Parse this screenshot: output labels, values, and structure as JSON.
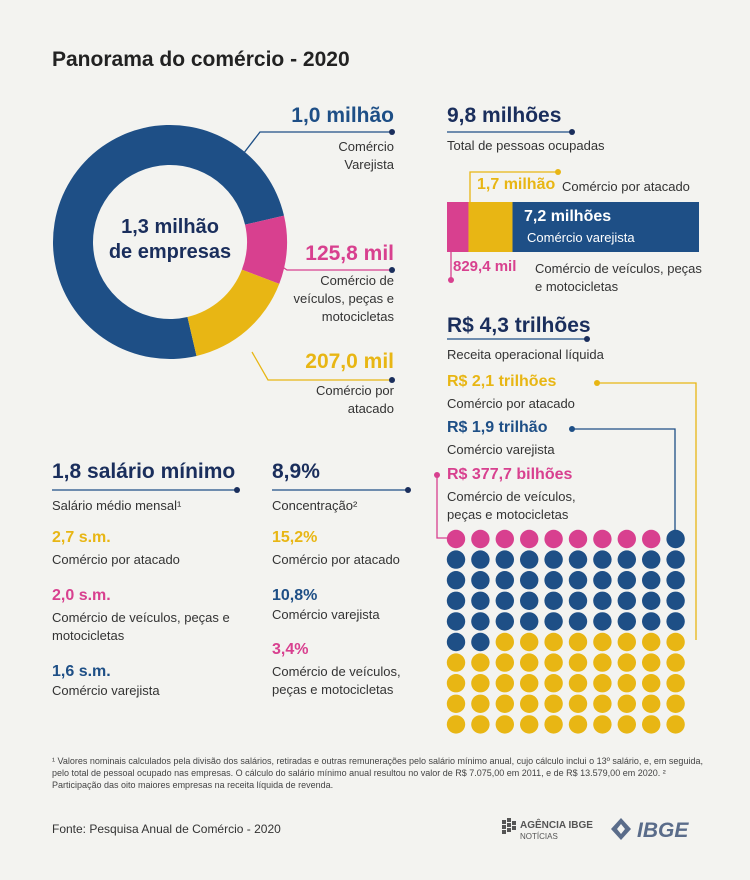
{
  "title": "Panorama do comércio - 2020",
  "colors": {
    "navy": "#1a2e5c",
    "blue": "#1e4f86",
    "gold": "#e8b614",
    "pink": "#d8408f"
  },
  "chart_data": [
    {
      "type": "pie",
      "center_label": [
        "1,3 milhão",
        "de empresas"
      ],
      "slices": [
        {
          "value": 1.0,
          "value_label": "1,0 milhão",
          "label": "Comércio Varejista",
          "color": "#1e4f86"
        },
        {
          "value": 0.1258,
          "value_label": "125,8 mil",
          "label": "Comércio de veículos, peças e motocicletas",
          "color": "#d8408f"
        },
        {
          "value": 0.207,
          "value_label": "207,0 mil",
          "label": "Comércio por atacado",
          "color": "#e8b614"
        }
      ]
    },
    {
      "type": "bar",
      "headline": "9,8 milhões",
      "subtitle": "Total de pessoas ocupadas",
      "segments": [
        {
          "value": 0.8294,
          "value_label": "829,4 mil",
          "label": "Comércio de veículos, peças e motocicletas",
          "color": "#d8408f"
        },
        {
          "value": 1.7,
          "value_label": "1,7 milhão",
          "label": "Comércio por atacado",
          "color": "#e8b614"
        },
        {
          "value": 7.2,
          "value_label": "7,2 milhões",
          "label": "Comércio varejista",
          "color": "#1e4f86"
        }
      ]
    },
    {
      "type": "table",
      "headline": "R$ 4,3 trilhões",
      "subtitle": "Receita operacional líquida",
      "items": [
        {
          "value_label": "R$ 2,1 trilhões",
          "label": "Comércio por atacado",
          "color": "#e8b614",
          "dots": 48
        },
        {
          "value_label": "R$ 1,9 trilhão",
          "label": "Comércio varejista",
          "color": "#1e4f86",
          "dots": 43
        },
        {
          "value_label": "R$ 377,7 bilhões",
          "label": "Comércio de veículos, peças e motocicletas",
          "color": "#d8408f",
          "dots": 9
        }
      ]
    }
  ],
  "salario": {
    "headline": "1,8 salário mínimo",
    "subtitle": "Salário médio mensal¹",
    "items": [
      {
        "value": "2,7 s.m.",
        "label": "Comércio por atacado"
      },
      {
        "value": "2,0 s.m.",
        "label": "Comércio de veículos, peças e motocicletas"
      },
      {
        "value": "1,6 s.m.",
        "label": "Comércio varejista"
      }
    ]
  },
  "concentracao": {
    "headline": "8,9%",
    "subtitle": "Concentração²",
    "items": [
      {
        "value": "15,2%",
        "label": "Comércio por atacado"
      },
      {
        "value": "10,8%",
        "label": "Comércio varejista"
      },
      {
        "value": "3,4%",
        "label": "Comércio de veículos, peças e motocicletas"
      }
    ]
  },
  "footnote": "¹ Valores nominais calculados pela divisão dos salários, retiradas e outras remunerações pelo salário mínimo anual, cujo cálculo inclui o 13º salário, e, em seguida, pelo total de pessoal ocupado nas empresas. O cálculo do salário mínimo anual resultou no valor de R$ 7.075,00 em 2011, e de R$ 13.579,00 em 2020.   ² Participação das oito maiores empresas na receita líquida de revenda.",
  "source": "Fonte: Pesquisa Anual de Comércio - 2020",
  "logos": {
    "agencia_top": "AGÊNCIA IBGE",
    "agencia_bottom": "NOTÍCIAS",
    "ibge": "IBGE"
  }
}
